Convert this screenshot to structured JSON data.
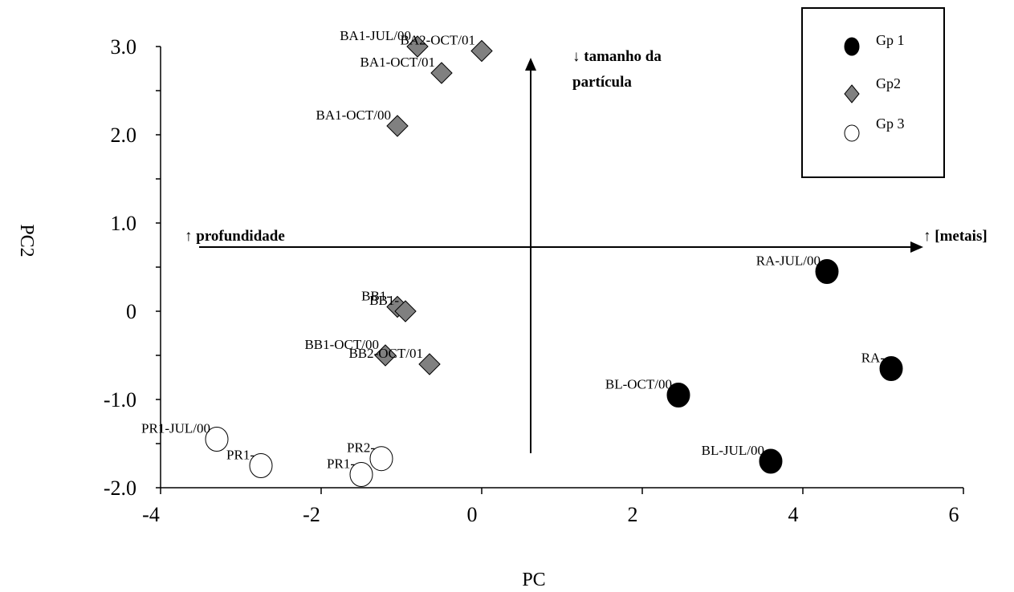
{
  "chart_data": {
    "type": "scatter",
    "xlabel": "PC",
    "ylabel": "PC2",
    "xlim": [
      -4,
      6
    ],
    "ylim": [
      -2.0,
      3.0
    ],
    "x_ticks": [
      -4,
      -2,
      0,
      2,
      4,
      6
    ],
    "x_tick_labels": [
      "-4",
      "-2",
      "0",
      "2",
      "4",
      "6"
    ],
    "y_ticks": [
      -2,
      -1,
      0,
      1,
      2,
      3
    ],
    "y_tick_labels": [
      "-2.0",
      "-1.0",
      "0",
      "1.0",
      "2.0",
      "3.0"
    ],
    "grid": false,
    "legend_position": "top-right",
    "series": [
      {
        "name": "Gp 1",
        "marker": "circle-filled",
        "color": "#000000",
        "points": [
          {
            "label": "RA-JUL/00",
            "x": 4.3,
            "y": 0.45
          },
          {
            "label": "RA-",
            "x": 5.1,
            "y": -0.65
          },
          {
            "label": "BL-OCT/00",
            "x": 2.45,
            "y": -0.95
          },
          {
            "label": "BL-JUL/00",
            "x": 3.6,
            "y": -1.7
          }
        ]
      },
      {
        "name": "Gp2",
        "marker": "diamond",
        "color": "#808080",
        "points": [
          {
            "label": "BA1-JUL/00",
            "x": -0.8,
            "y": 3.0
          },
          {
            "label": "BA2-OCT/01",
            "x": 0.0,
            "y": 2.95
          },
          {
            "label": "BA1-OCT/01",
            "x": -0.5,
            "y": 2.7
          },
          {
            "label": "BA1-OCT/00",
            "x": -1.05,
            "y": 2.1
          },
          {
            "label": "BB1-",
            "x": -1.05,
            "y": 0.05
          },
          {
            "label": "BB1-",
            "x": -0.95,
            "y": 0.0
          },
          {
            "label": "BB1-OCT/00",
            "x": -1.2,
            "y": -0.5
          },
          {
            "label": "BB2-OCT/01",
            "x": -0.65,
            "y": -0.6
          }
        ]
      },
      {
        "name": "Gp 3",
        "marker": "circle-open",
        "color": "#ffffff",
        "points": [
          {
            "label": "PR1-JUL/00",
            "x": -3.3,
            "y": -1.45
          },
          {
            "label": "PR1-",
            "x": -2.75,
            "y": -1.75
          },
          {
            "label": "PR2-",
            "x": -1.25,
            "y": -1.67
          },
          {
            "label": "PR1-",
            "x": -1.5,
            "y": -1.85
          }
        ]
      }
    ],
    "annotations": {
      "up_arrow_label_line1": "↓ tamanho da",
      "up_arrow_label_line2": "partícula",
      "left_label": "↑ profundidade",
      "right_label": "↑ [metais]"
    },
    "legend": {
      "entries": [
        "Gp 1",
        "Gp2",
        "Gp 3"
      ]
    }
  }
}
